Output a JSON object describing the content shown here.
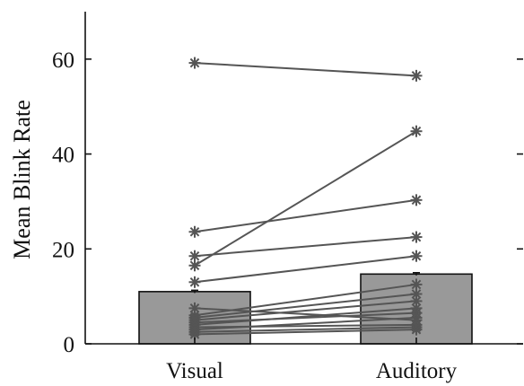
{
  "chart_data": {
    "type": "bar",
    "categories": [
      "Visual",
      "Auditory"
    ],
    "values": [
      11,
      14.7
    ],
    "error": [
      0.3,
      0.3
    ],
    "ylabel": "Mean Blink Rate",
    "xlabel": "",
    "ylim": [
      0,
      70
    ],
    "yticks": [
      0,
      20,
      40,
      60
    ],
    "ytick_labels": [
      "0",
      "20",
      "40",
      "60"
    ],
    "grid": false,
    "bar_color": "#999999",
    "paired_color": "#555555",
    "paired": [
      {
        "visual": 59.2,
        "auditory": 56.5
      },
      {
        "visual": 23.6,
        "auditory": 30.3
      },
      {
        "visual": 18.5,
        "auditory": 22.5
      },
      {
        "visual": 16.5,
        "auditory": 44.8
      },
      {
        "visual": 13.0,
        "auditory": 18.5
      },
      {
        "visual": 7.5,
        "auditory": 5.0
      },
      {
        "visual": 6.0,
        "auditory": 12.5
      },
      {
        "visual": 5.5,
        "auditory": 10.5
      },
      {
        "visual": 5.0,
        "auditory": 9.0
      },
      {
        "visual": 4.5,
        "auditory": 6.5
      },
      {
        "visual": 4.0,
        "auditory": 7.5
      },
      {
        "visual": 3.5,
        "auditory": 4.0
      },
      {
        "visual": 3.0,
        "auditory": 5.5
      },
      {
        "visual": 2.5,
        "auditory": 3.5
      },
      {
        "visual": 2.0,
        "auditory": 3.0
      }
    ]
  }
}
